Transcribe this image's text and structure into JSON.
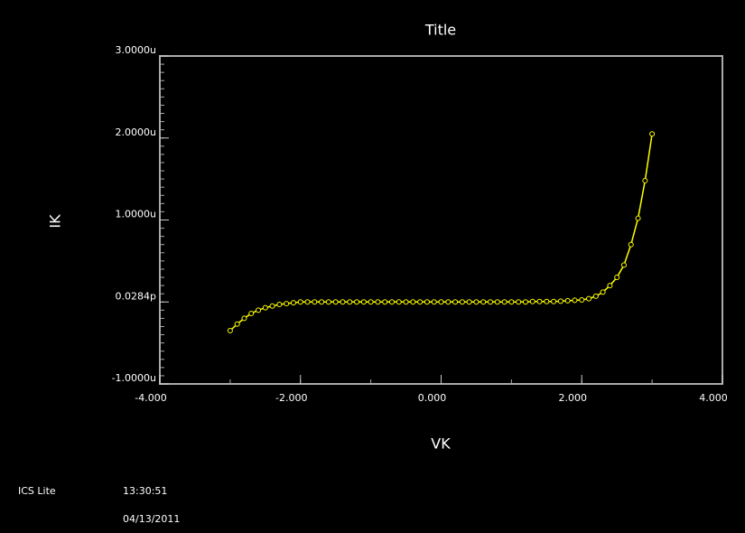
{
  "chart_data": {
    "type": "line",
    "title": "Title",
    "x_label": "VK",
    "y_label": "IK",
    "x": [
      -3.0,
      -2.9,
      -2.8,
      -2.7,
      -2.6,
      -2.5,
      -2.4,
      -2.3,
      -2.2,
      -2.1,
      -2.0,
      -1.9,
      -1.8,
      -1.7,
      -1.6,
      -1.5,
      -1.4,
      -1.3,
      -1.2,
      -1.1,
      -1.0,
      -0.9,
      -0.8,
      -0.7,
      -0.6,
      -0.5,
      -0.4,
      -0.3,
      -0.2,
      -0.1,
      0.0,
      0.1,
      0.2,
      0.3,
      0.4,
      0.5,
      0.6,
      0.7,
      0.8,
      0.9,
      1.0,
      1.1,
      1.2,
      1.3,
      1.4,
      1.5,
      1.6,
      1.7,
      1.8,
      1.9,
      2.0,
      2.1,
      2.2,
      2.3,
      2.4,
      2.5,
      2.6,
      2.7,
      2.8,
      2.9,
      3.0
    ],
    "series": [
      {
        "name": "IK",
        "color": "#ffff00",
        "values": [
          -0.35,
          -0.27,
          -0.2,
          -0.14,
          -0.1,
          -0.07,
          -0.05,
          -0.03,
          -0.02,
          -0.01,
          0,
          0,
          0,
          0,
          0,
          0,
          0,
          0,
          0,
          0,
          0,
          0,
          0,
          0,
          0,
          0,
          0,
          0,
          0,
          0,
          0,
          0,
          0,
          0,
          0,
          0,
          0,
          0,
          0,
          0,
          0,
          0,
          0,
          0.005,
          0.005,
          0.005,
          0.005,
          0.01,
          0.015,
          0.02,
          0.025,
          0.04,
          0.07,
          0.12,
          0.2,
          0.3,
          0.45,
          0.7,
          1.02,
          1.48,
          2.05
        ]
      }
    ],
    "xlim": [
      -4,
      4
    ],
    "xticks": [
      {
        "value": -4,
        "label": "-4.000"
      },
      {
        "value": -2,
        "label": "-2.000"
      },
      {
        "value": 0,
        "label": "0.000"
      },
      {
        "value": 2,
        "label": "2.000"
      },
      {
        "value": 4,
        "label": "4.000"
      }
    ],
    "ylim": [
      -1,
      3
    ],
    "yticks": [
      {
        "value": -1,
        "label": "-1.0000u"
      },
      {
        "value": 2.84e-08,
        "label": "0.0284p"
      },
      {
        "value": 1,
        "label": "1.0000u"
      },
      {
        "value": 2,
        "label": "2.0000u"
      },
      {
        "value": 3,
        "label": "3.0000u"
      }
    ],
    "grid": false
  },
  "footer": {
    "app": "ICS Lite",
    "time": "13:30:51",
    "date": "04/13/2011"
  }
}
